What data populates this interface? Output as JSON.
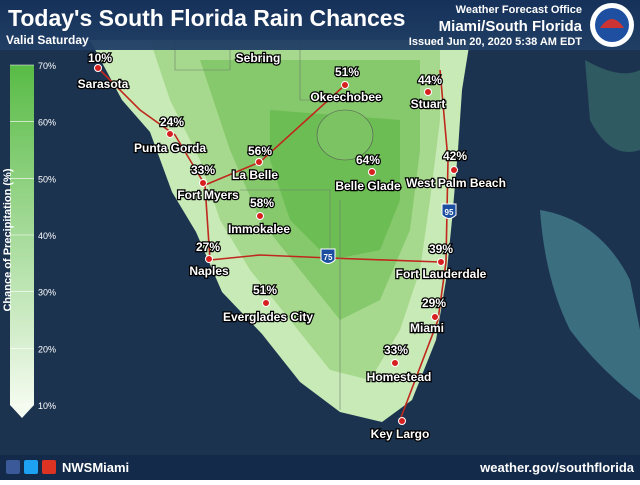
{
  "header": {
    "title": "Today's South Florida Rain Chances",
    "subtitle": "Valid Saturday",
    "office": "Weather Forecast Office",
    "region": "Miami/South Florida",
    "issued": "Issued Jun 20, 2020 5:38 AM EDT"
  },
  "legend": {
    "title": "Chance of Precipitation (%)",
    "ticks": [
      "10%",
      "20%",
      "30%",
      "40%",
      "50%",
      "60%",
      "70%"
    ]
  },
  "highways": [
    "75",
    "95"
  ],
  "cities": [
    {
      "name": "Sarasota",
      "chance": "10%"
    },
    {
      "name": "Sebring"
    },
    {
      "name": "Okeechobee",
      "chance": "51%"
    },
    {
      "name": "Stuart",
      "chance": "44%"
    },
    {
      "name": "Punta Gorda",
      "chance": "24%"
    },
    {
      "name": "La Belle",
      "chance": "56%"
    },
    {
      "name": "Belle Glade",
      "chance": "64%"
    },
    {
      "name": "West Palm Beach",
      "chance": "42%"
    },
    {
      "name": "Fort Myers",
      "chance": "33%"
    },
    {
      "name": "Immokalee",
      "chance": "58%"
    },
    {
      "name": "Naples",
      "chance": "27%"
    },
    {
      "name": "Fort Lauderdale",
      "chance": "39%"
    },
    {
      "name": "Everglades City",
      "chance": "51%"
    },
    {
      "name": "Miami",
      "chance": "29%"
    },
    {
      "name": "Homestead",
      "chance": "33%"
    },
    {
      "name": "Key Largo"
    }
  ],
  "footer": {
    "handle": "NWSMiami",
    "url": "weather.gov/southflorida"
  }
}
